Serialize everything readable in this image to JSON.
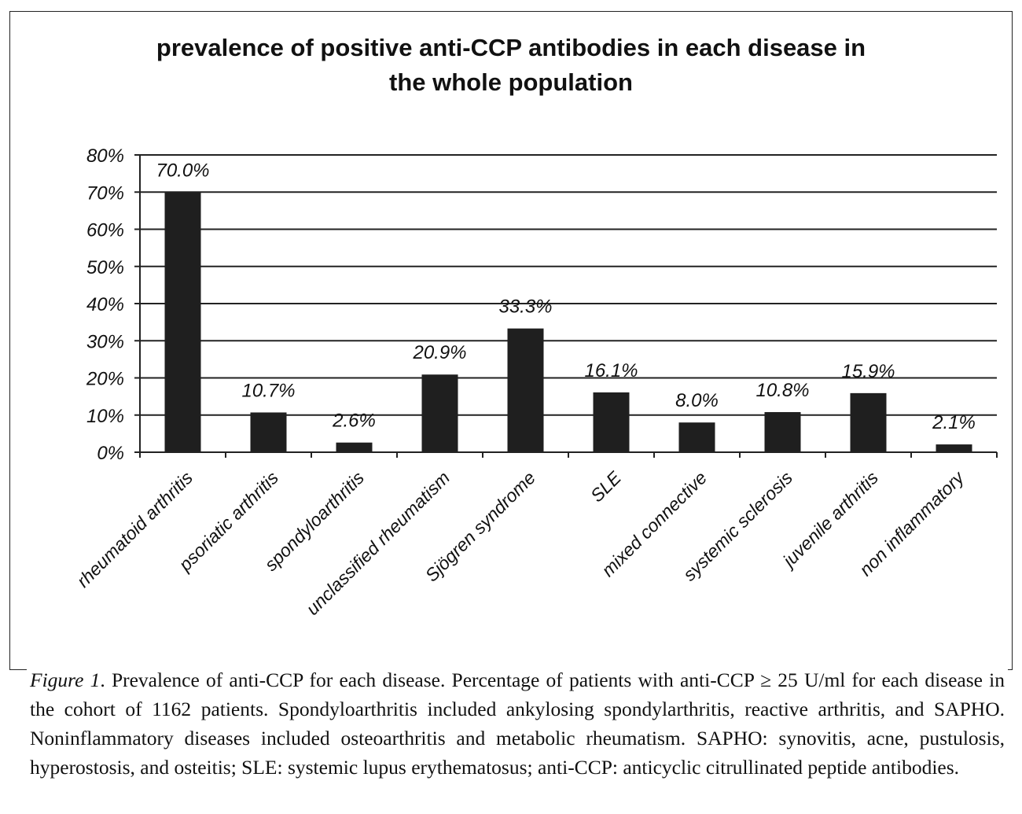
{
  "chart_data": {
    "type": "bar",
    "title_lines": [
      "prevalence of positive anti-CCP antibodies in each disease in",
      "the whole population"
    ],
    "categories": [
      "rheumatoid arthritis",
      "psoriatic arthritis",
      "spondyloarthritis",
      "unclassified rheumatism",
      "Sjögren syndrome",
      "SLE",
      "mixed connective",
      "systemic sclerosis",
      "juvenile arthritis",
      "non inflammatory"
    ],
    "values": [
      70.0,
      10.7,
      2.6,
      20.9,
      33.3,
      16.1,
      8.0,
      10.8,
      15.9,
      2.1
    ],
    "value_labels": [
      "70.0%",
      "10.7%",
      "2.6%",
      "20.9%",
      "33.3%",
      "16.1%",
      "8.0%",
      "10.8%",
      "15.9%",
      "2.1%"
    ],
    "ylim": [
      0,
      80
    ],
    "yticks": [
      0,
      10,
      20,
      30,
      40,
      50,
      60,
      70,
      80
    ],
    "ytick_labels": [
      "0%",
      "10%",
      "20%",
      "30%",
      "40%",
      "50%",
      "60%",
      "70%",
      "80%"
    ],
    "grid": true,
    "bar_color": "#1f1f1f"
  },
  "caption": {
    "label": "Figure 1",
    "text": ". Prevalence of anti-CCP for each disease. Percentage of patients with anti-CCP ≥ 25 U/ml for each disease in the cohort of 1162 patients. Spondyloarthritis included ankylosing spondylarthritis, reactive arthritis, and SAPHO. Noninflammatory diseases included osteoarthritis and metabolic rheumatism. SAPHO: synovitis, acne, pustulosis, hyperostosis, and osteitis; SLE: systemic lupus erythematosus; anti-CCP: anticyclic citrullinated peptide antibodies."
  }
}
